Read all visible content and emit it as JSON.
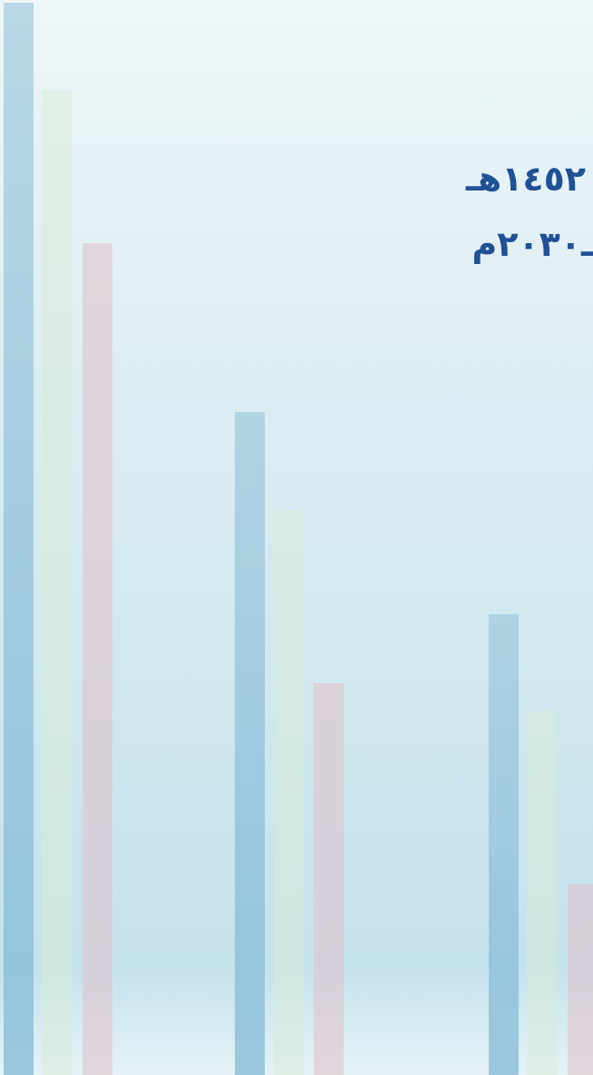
{
  "cover": {
    "hijri_year": "١٤٥٢هـ",
    "gregorian_year": "ـ٢٠٣٠م"
  }
}
